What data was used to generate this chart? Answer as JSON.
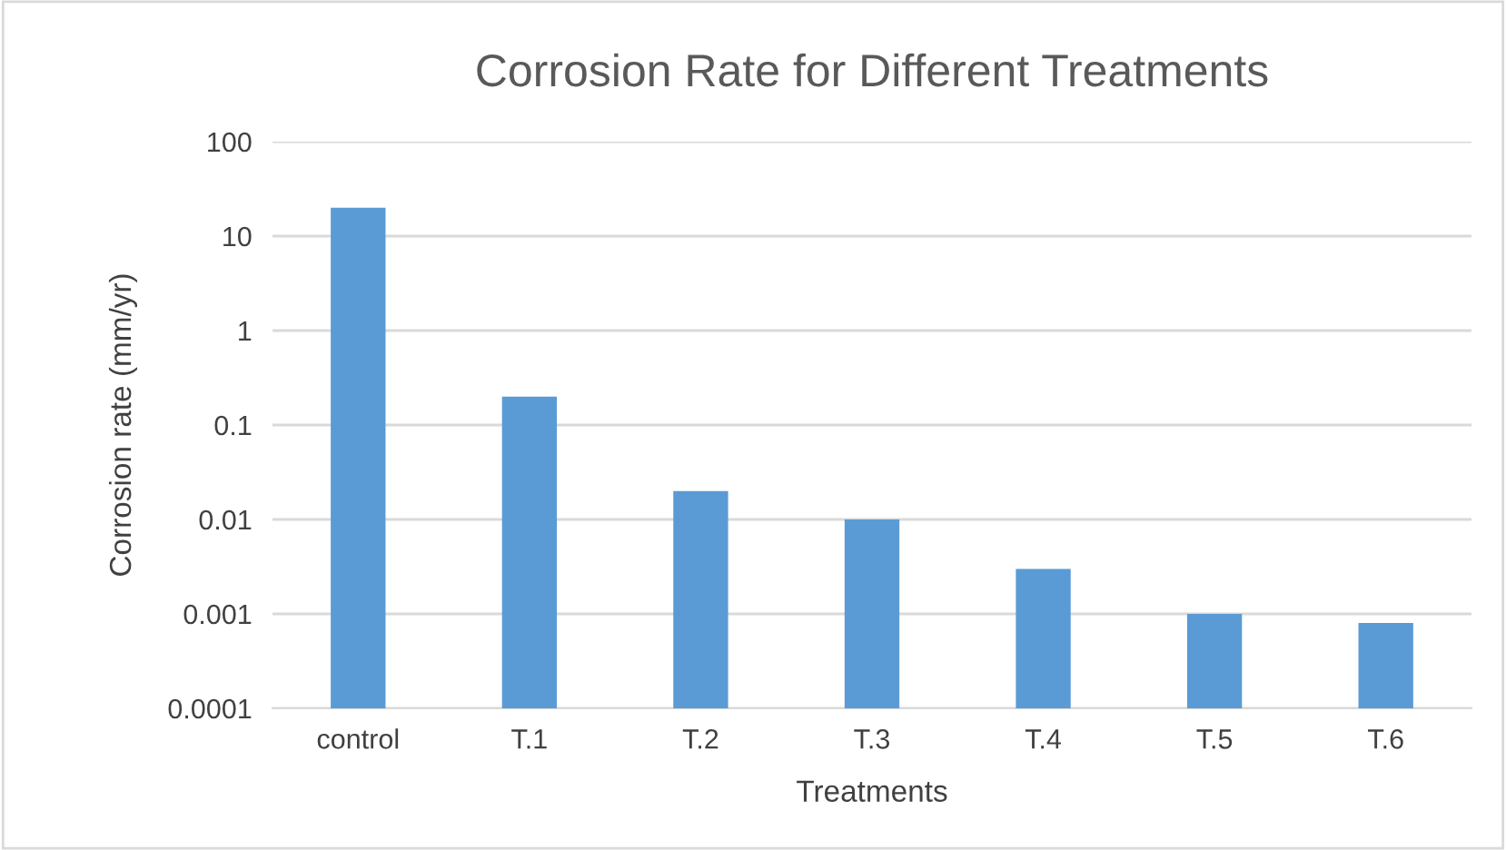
{
  "chart_data": {
    "type": "bar",
    "title": "Corrosion Rate for Different Treatments",
    "xlabel": "Treatments",
    "ylabel": "Corrosion rate (mm/yr)",
    "categories": [
      "control",
      "T.1",
      "T.2",
      "T.3",
      "T.4",
      "T.5",
      "T.6"
    ],
    "values": [
      20,
      0.2,
      0.02,
      0.01,
      0.003,
      0.001,
      0.0008
    ],
    "color": "#5b9bd5",
    "log": "y",
    "ylim": [
      0.0001,
      100
    ],
    "yticks": [
      0.0001,
      0.001,
      0.01,
      0.1,
      1,
      10,
      100
    ],
    "grid": "y"
  }
}
